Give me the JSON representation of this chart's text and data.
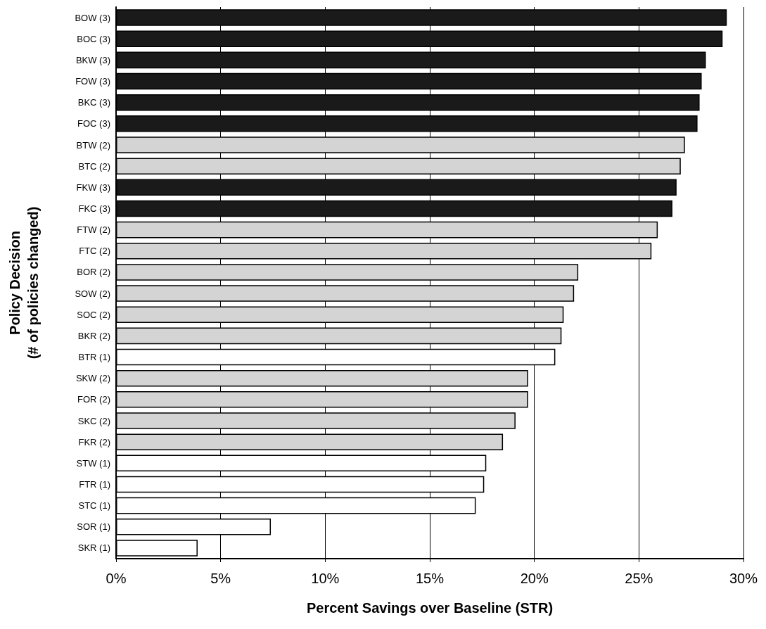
{
  "chart_data": {
    "type": "bar",
    "orientation": "horizontal",
    "xlabel": "Percent Savings over Baseline (STR)",
    "ylabel": "Policy Decision\n(# of policies changed)",
    "categories": [
      "BOW (3)",
      "BOC (3)",
      "BKW (3)",
      "FOW (3)",
      "BKC (3)",
      "FOC (3)",
      "BTW (2)",
      "BTC (2)",
      "FKW (3)",
      "FKC (3)",
      "FTW (2)",
      "FTC (2)",
      "BOR (2)",
      "SOW (2)",
      "SOC (2)",
      "BKR (2)",
      "BTR (1)",
      "SKW (2)",
      "FOR (2)",
      "SKC (2)",
      "FKR (2)",
      "STW (1)",
      "FTR (1)",
      "STC (1)",
      "SOR (1)",
      "SKR (1)"
    ],
    "values": [
      29.2,
      29.0,
      28.2,
      28.0,
      27.9,
      27.8,
      27.2,
      27.0,
      26.8,
      26.6,
      25.9,
      25.6,
      22.1,
      21.9,
      21.4,
      21.3,
      21.0,
      19.7,
      19.7,
      19.1,
      18.5,
      17.7,
      17.6,
      17.2,
      7.4,
      3.9
    ],
    "colors": [
      "#1a1a1a",
      "#1a1a1a",
      "#1a1a1a",
      "#1a1a1a",
      "#1a1a1a",
      "#1a1a1a",
      "#d4d4d4",
      "#d4d4d4",
      "#1a1a1a",
      "#1a1a1a",
      "#d4d4d4",
      "#d4d4d4",
      "#d4d4d4",
      "#d4d4d4",
      "#d4d4d4",
      "#d4d4d4",
      "#ffffff",
      "#d4d4d4",
      "#d4d4d4",
      "#d4d4d4",
      "#d4d4d4",
      "#ffffff",
      "#ffffff",
      "#ffffff",
      "#ffffff",
      "#ffffff"
    ],
    "xlim": [
      0,
      30
    ],
    "xticks": [
      {
        "value": 0,
        "label": "0%"
      },
      {
        "value": 5,
        "label": "5%"
      },
      {
        "value": 10,
        "label": "10%"
      },
      {
        "value": 15,
        "label": "15%"
      },
      {
        "value": 20,
        "label": "20%"
      },
      {
        "value": 25,
        "label": "25%"
      },
      {
        "value": 30,
        "label": "30%"
      }
    ],
    "grid": "x"
  }
}
